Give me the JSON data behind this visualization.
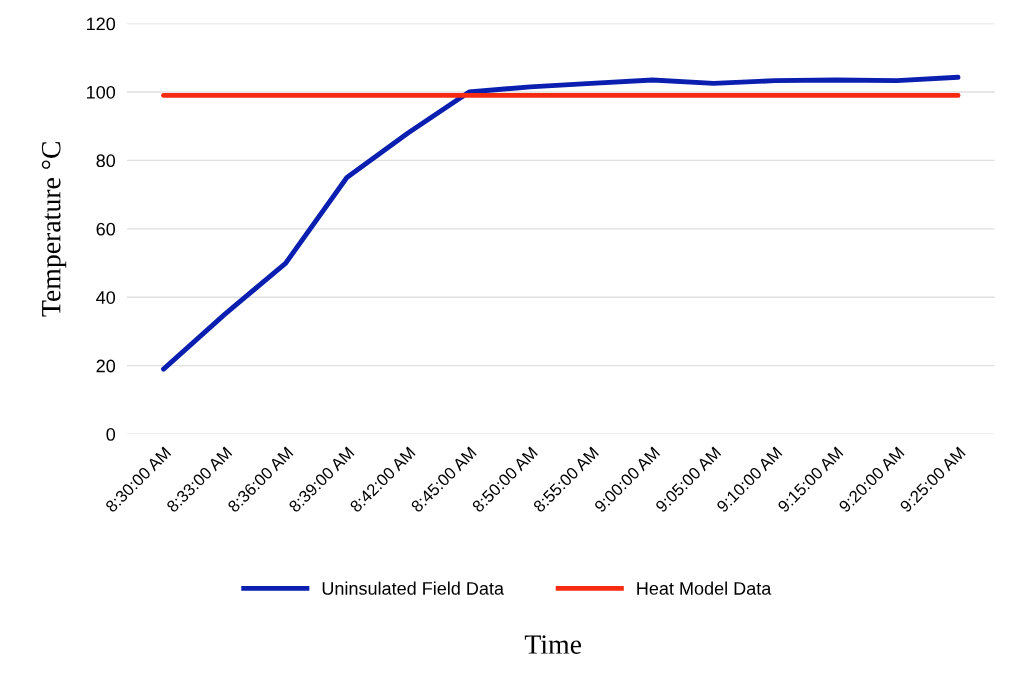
{
  "chart_data": {
    "type": "line",
    "xlabel": "Time",
    "ylabel": "Temperature °C",
    "categories": [
      "8:30:00 AM",
      "8:33:00 AM",
      "8:36:00 AM",
      "8:39:00 AM",
      "8:42:00 AM",
      "8:45:00 AM",
      "8:50:00 AM",
      "8:55:00 AM",
      "9:00:00 AM",
      "9:05:00 AM",
      "9:10:00 AM",
      "9:15:00 AM",
      "9:20:00 AM",
      "9:25:00 AM"
    ],
    "series": [
      {
        "name": "Uninsulated Field Data",
        "color": "#0a1fb0",
        "values": [
          19,
          35,
          50,
          75,
          88,
          100,
          101.5,
          102.5,
          103.5,
          102.5,
          103.3,
          103.5,
          103.3,
          104.3
        ]
      },
      {
        "name": "Heat Model Data",
        "color": "#f52a10",
        "values": [
          99,
          99,
          99,
          99,
          99,
          99,
          99,
          99,
          99,
          99,
          99,
          99,
          99,
          99
        ]
      }
    ],
    "ylim": [
      0,
      120
    ],
    "yticks": [
      0,
      20,
      40,
      60,
      80,
      100,
      120
    ],
    "grid": "y",
    "legend": "bottom",
    "marker": "none",
    "line_style": "solid"
  }
}
